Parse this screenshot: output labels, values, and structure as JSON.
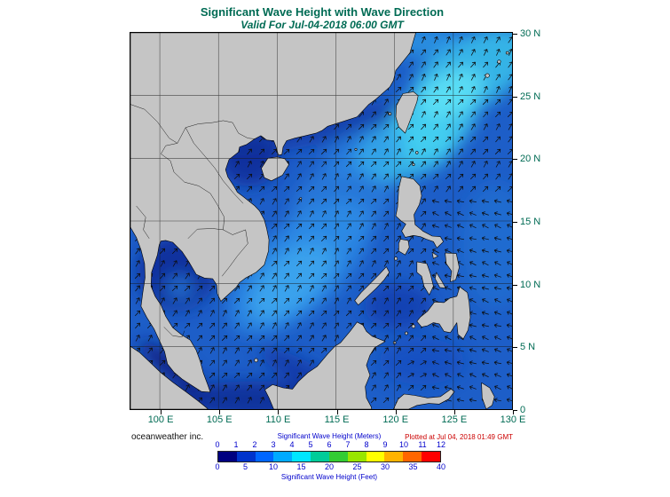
{
  "title": "Significant Wave Height with Wave Direction",
  "subtitle": "Valid For Jul-04-2018 06:00 GMT",
  "credit": "oceanweather inc.",
  "plotted_note": "Plotted at Jul 04, 2018 01:49 GMT",
  "axes": {
    "lon_ticks": [
      {
        "label": "100 E",
        "lon": 100
      },
      {
        "label": "105 E",
        "lon": 105
      },
      {
        "label": "110 E",
        "lon": 110
      },
      {
        "label": "115 E",
        "lon": 115
      },
      {
        "label": "120 E",
        "lon": 120
      },
      {
        "label": "125 E",
        "lon": 125
      },
      {
        "label": "130 E",
        "lon": 130
      }
    ],
    "lat_ticks": [
      {
        "label": "0",
        "lat": 0
      },
      {
        "label": "5 N",
        "lat": 5
      },
      {
        "label": "10 N",
        "lat": 10
      },
      {
        "label": "15 N",
        "lat": 15
      },
      {
        "label": "20 N",
        "lat": 20
      },
      {
        "label": "25 N",
        "lat": 25
      },
      {
        "label": "30 N",
        "lat": 30
      }
    ]
  },
  "legend": {
    "meters_label": "Significant Wave Height (Meters)",
    "feet_label": "Significant Wave Height (Feet)",
    "meters_ticks": [
      "0",
      "1",
      "2",
      "3",
      "4",
      "5",
      "6",
      "7",
      "8",
      "9",
      "10",
      "11",
      "12"
    ],
    "feet_ticks": [
      "0",
      "5",
      "10",
      "15",
      "20",
      "25",
      "30",
      "35",
      "40"
    ],
    "colors": [
      "#000080",
      "#0033CC",
      "#0066FF",
      "#00AAFF",
      "#00E6FF",
      "#00CC99",
      "#33CC33",
      "#99E600",
      "#FFFF00",
      "#FFB300",
      "#FF6600",
      "#FF0000"
    ]
  },
  "colors": {
    "title_text": "#006B54",
    "axis_text": "#006B54",
    "legend_text": "#0000CC",
    "plotted_text": "#CC0000",
    "land": "#C5C5C5",
    "ocean_base": "#1D5EC8"
  }
}
